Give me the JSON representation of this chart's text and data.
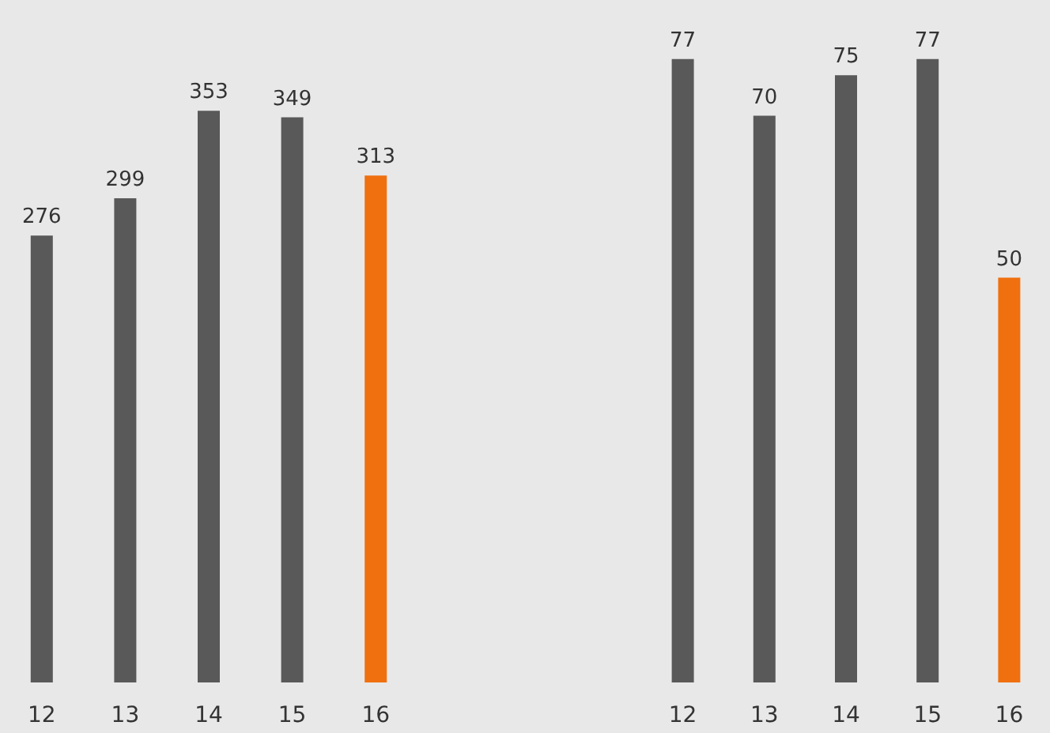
{
  "chart_data": [
    {
      "type": "bar",
      "categories": [
        "12",
        "13",
        "14",
        "15",
        "16"
      ],
      "values": [
        276,
        299,
        353,
        349,
        313
      ],
      "colors": [
        "#595959",
        "#595959",
        "#595959",
        "#595959",
        "#f07010"
      ],
      "data_labels": true,
      "tick_labels": "x",
      "grid": false
    },
    {
      "type": "bar",
      "categories": [
        "12",
        "13",
        "14",
        "15",
        "16"
      ],
      "values": [
        77,
        70,
        75,
        77,
        50
      ],
      "colors": [
        "#595959",
        "#595959",
        "#595959",
        "#595959",
        "#f07010"
      ],
      "data_labels": true,
      "tick_labels": "x",
      "grid": false
    }
  ]
}
